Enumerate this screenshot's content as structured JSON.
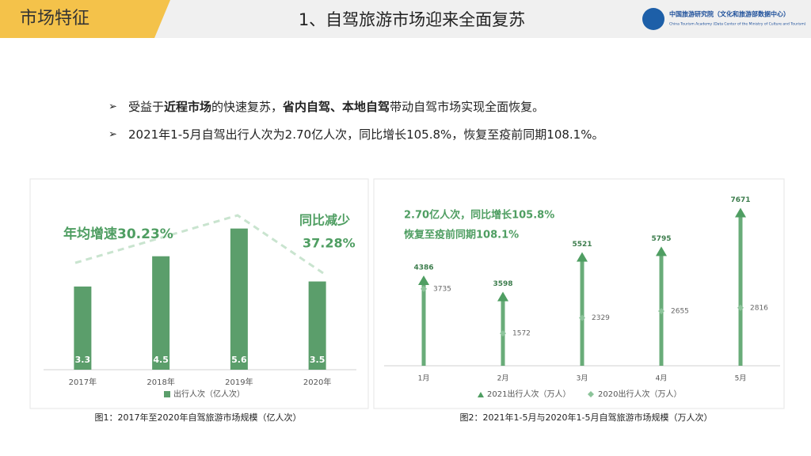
{
  "header": {
    "section": "市场特征",
    "title": "1、自驾旅游市场迎来全面复苏",
    "logo": "中国旅游研究院（文化和旅游部数据中心）",
    "logo_en": "China Tourism Academy (Data Center of the Ministry of Culture and Tourism)"
  },
  "bullets": [
    [
      {
        "text": "受益于"
      },
      {
        "text": "近程市场",
        "bold": true
      },
      {
        "text": "的快速复苏，"
      },
      {
        "text": "省内自驾、本地自驾",
        "bold": true
      },
      {
        "text": "带动自驾市场实现全面恢复。"
      }
    ],
    [
      {
        "text": "2021年1-5月自驾出行人次为2.70亿人次，同比增长105.8%，恢复至疫前同期108.1%。"
      }
    ]
  ],
  "chart_data": [
    {
      "type": "bar",
      "categories": [
        "2017年",
        "2018年",
        "2019年",
        "2020年"
      ],
      "series": [
        {
          "name": "出行人次（亿人次）",
          "color": "#5b9e6b",
          "values": [
            3.3,
            4.5,
            5.6,
            3.5
          ]
        }
      ],
      "ylim": [
        0,
        6.5
      ],
      "annotations": [
        "年均增速30.23%",
        "同比减少",
        "37.28%"
      ],
      "caption": "图1：2017年至2020年自驾旅游市场规模（亿人次）"
    },
    {
      "type": "arrow",
      "categories": [
        "1月",
        "2月",
        "3月",
        "4月",
        "5月"
      ],
      "series": [
        {
          "name": "2021出行人次（万人）",
          "color": "#4f9e62",
          "values": [
            4386,
            3598,
            5521,
            5795,
            7671
          ]
        },
        {
          "name": "2020出行人次（万人）",
          "color": "#8cc49a",
          "values": [
            3735,
            1572,
            2329,
            2655,
            2816
          ]
        }
      ],
      "ylim": [
        0,
        8000
      ],
      "annotations": [
        "2.70亿人次，同比增长105.8%",
        "恢复至疫前同期108.1%"
      ],
      "caption": "图2：2021年1-5月与2020年1-5月自驾旅游市场规模（万人次）"
    }
  ]
}
